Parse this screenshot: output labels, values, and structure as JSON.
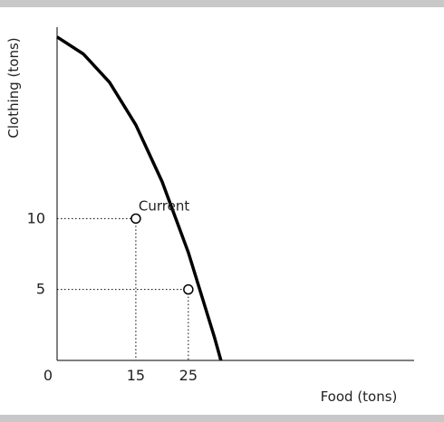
{
  "chart_data": {
    "type": "line",
    "title": "",
    "xlabel": "Food (tons)",
    "ylabel": "Clothing (tons)",
    "origin_label": "0",
    "x_ticks": [
      15,
      25
    ],
    "y_ticks": [
      5,
      10
    ],
    "xlim": [
      0,
      68
    ],
    "ylim": [
      0,
      24
    ],
    "series": [
      {
        "values": [
          {
            "x": 0,
            "y": 22.8
          },
          {
            "x": 5,
            "y": 21.6
          },
          {
            "x": 10,
            "y": 19.6
          },
          {
            "x": 15,
            "y": 16.6
          },
          {
            "x": 20,
            "y": 12.6
          },
          {
            "x": 25,
            "y": 7.6
          },
          {
            "x": 30,
            "y": 1.6
          },
          {
            "x": 31.2,
            "y": 0
          }
        ]
      }
    ],
    "points": [
      {
        "x": 15,
        "y": 10,
        "label": "Current"
      },
      {
        "x": 25,
        "y": 5,
        "label": ""
      }
    ],
    "grid": false,
    "guide_lines": "dotted"
  },
  "colors": {
    "curve": "#000000",
    "axis": "#000000",
    "band": "#c8c8c8",
    "background": "#ffffff"
  }
}
